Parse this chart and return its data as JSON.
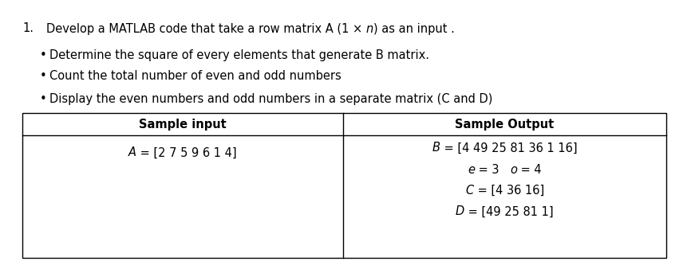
{
  "bg_color": "#ffffff",
  "text_color": "#000000",
  "font_size": 10.5,
  "title_number": "1.",
  "title_prefix": "Develop a MATLAB code that take a row matrix A (1 × ",
  "title_italic": "n",
  "title_suffix": ") as an input .",
  "bullets": [
    "Determine the square of every elements that generate B matrix.",
    "Count the total number of even and odd numbers",
    "Display the even numbers and odd numbers in a separate matrix (C and D)"
  ],
  "table_header_left": "Sample input",
  "table_header_right": "Sample Output",
  "left_cell_italic": "A",
  "left_cell_rest": " = [2 7 5 9 6 1 4]",
  "right_lines": [
    [
      "B",
      " = [4 49 25 81 36 1 16]"
    ],
    [
      "e",
      " = 3   ",
      "o",
      " = 4"
    ],
    [
      "C",
      " = [4 36 16]"
    ],
    [
      "D",
      " = [49 25 81 1]"
    ]
  ]
}
